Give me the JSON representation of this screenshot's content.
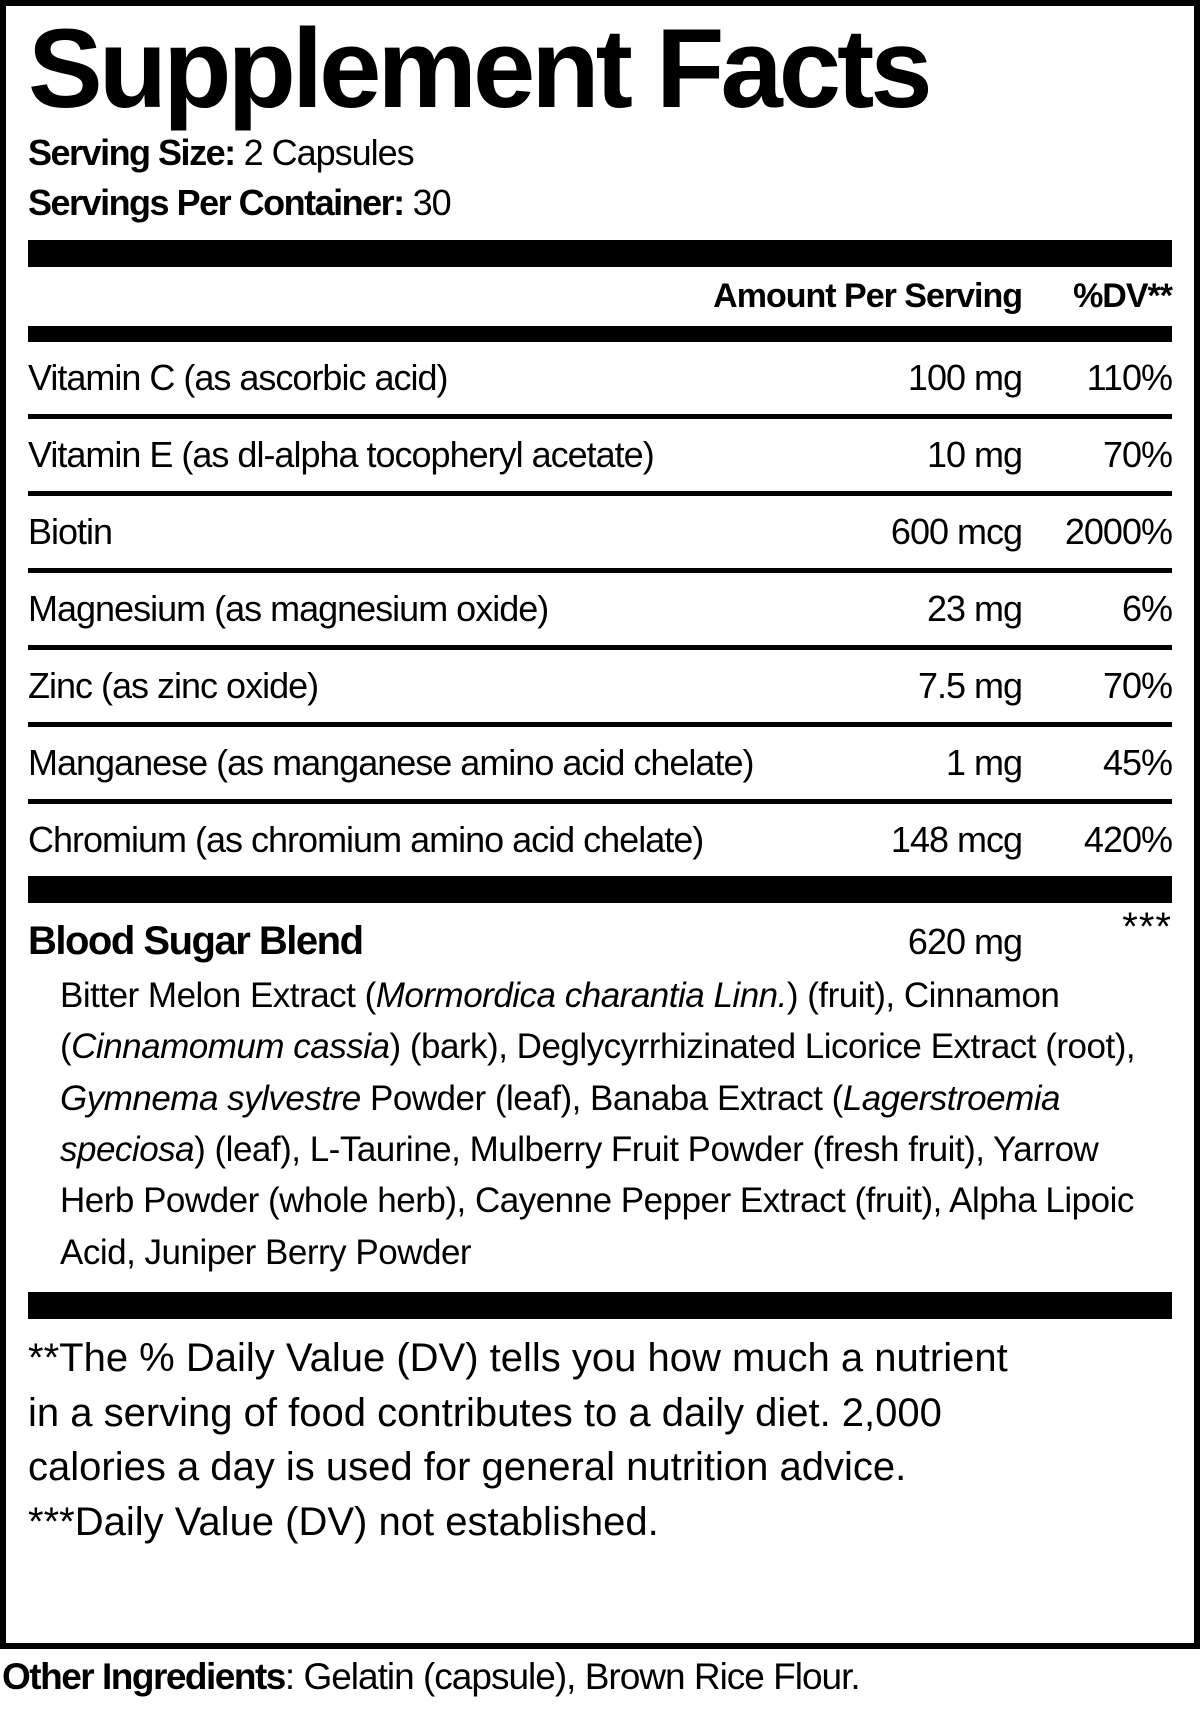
{
  "title": "Supplement Facts",
  "serving": {
    "size_label": "Serving Size:",
    "size_value": " 2 Capsules",
    "container_label": "Servings Per Container:",
    "container_value": " 30"
  },
  "columns": {
    "amount": "Amount Per Serving",
    "dv": "%DV**"
  },
  "nutrients": [
    {
      "name": "Vitamin C (as ascorbic acid)",
      "amount": "100 mg",
      "dv": "110%"
    },
    {
      "name": "Vitamin E (as dl-alpha tocopheryl acetate)",
      "amount": "10 mg",
      "dv": "70%"
    },
    {
      "name": "Biotin",
      "amount": "600 mcg",
      "dv": "2000%"
    },
    {
      "name": "Magnesium (as magnesium oxide)",
      "amount": "23 mg",
      "dv": "6%"
    },
    {
      "name": "Zinc (as zinc oxide)",
      "amount": "7.5 mg",
      "dv": "70%"
    },
    {
      "name": "Manganese (as manganese amino acid chelate)",
      "amount": "1 mg",
      "dv": "45%"
    },
    {
      "name": "Chromium (as chromium amino acid chelate)",
      "amount": "148 mcg",
      "dv": "420%"
    }
  ],
  "blend": {
    "name": "Blood Sugar Blend",
    "amount": "620 mg",
    "dv": "***",
    "description": [
      {
        "t": "Bitter Melon Extract ("
      },
      {
        "t": "Mormordica charantia Linn.",
        "i": true
      },
      {
        "t": ") (fruit), Cinnamon ("
      },
      {
        "t": "Cinnamomum cassia",
        "i": true
      },
      {
        "t": ") (bark), Deglycyrrhizinated Licorice Extract (root), "
      },
      {
        "t": "Gymnema sylvestre",
        "i": true
      },
      {
        "t": " Powder (leaf), Banaba Extract ("
      },
      {
        "t": "Lagerstroemia speciosa",
        "i": true
      },
      {
        "t": ") (leaf), L-Taurine, Mulberry Fruit Powder (fresh fruit), Yarrow Herb Powder (whole herb), Cayenne Pepper Extract (fruit), Alpha Lipoic Acid, Juniper Berry Powder"
      }
    ]
  },
  "footnotes": {
    "dv_note": "**The % Daily Value (DV) tells you how much a nutrient in a serving of food contributes to a daily diet. 2,000 calories a day is used for general nutrition advice.",
    "not_established_note": "***Daily Value (DV) not established."
  },
  "other_ingredients": {
    "label": "Other Ingredients",
    "value": ": Gelatin (capsule), Brown Rice Flour."
  }
}
